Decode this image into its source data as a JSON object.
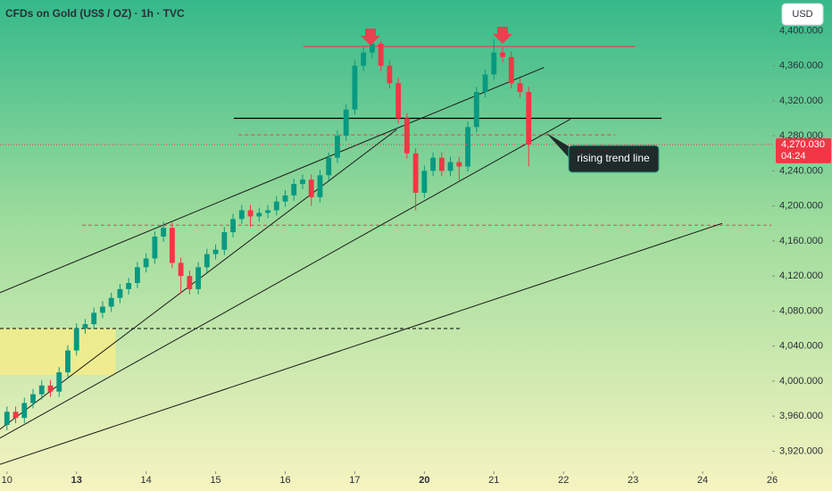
{
  "chart_data": {
    "type": "candlestick",
    "title": "CFDs on Gold (US$ / OZ) · 1h · TVC",
    "currency": "USD",
    "x": [
      0,
      0.125,
      0.25,
      0.375,
      0.5,
      0.625,
      0.75,
      0.875,
      1,
      1.125,
      1.25,
      1.375,
      1.5,
      1.625,
      1.75,
      1.875,
      2,
      2.125,
      2.25,
      2.375,
      2.5,
      2.625,
      2.75,
      2.875,
      3,
      3.125,
      3.25,
      3.375,
      3.5,
      3.625,
      3.75,
      3.875,
      4,
      4.125,
      4.25,
      4.375,
      4.5,
      4.625,
      4.75,
      4.875,
      5,
      5.125,
      5.25,
      5.375,
      5.5,
      5.625,
      5.75,
      5.875,
      6,
      6.125,
      6.25,
      6.375,
      6.5,
      6.625,
      6.75,
      6.875,
      7,
      7.125,
      7.25,
      7.375,
      7.5
    ],
    "open": [
      3950,
      3965,
      3958,
      3975,
      3985,
      3995,
      3988,
      4010,
      4035,
      4060,
      4065,
      4078,
      4085,
      4095,
      4105,
      4112,
      4130,
      4140,
      4165,
      4175,
      4135,
      4120,
      4105,
      4130,
      4145,
      4150,
      4170,
      4185,
      4195,
      4188,
      4192,
      4195,
      4205,
      4212,
      4225,
      4230,
      4210,
      4235,
      4255,
      4280,
      4310,
      4360,
      4375,
      4385,
      4360,
      4340,
      4300,
      4260,
      4215,
      4240,
      4255,
      4240,
      4250,
      4245,
      4290,
      4330,
      4350,
      4375,
      4370,
      4340,
      4330
    ],
    "high": [
      3971,
      3971,
      3981,
      3991,
      4001,
      4001,
      4016,
      4041,
      4066,
      4071,
      4084,
      4091,
      4101,
      4111,
      4118,
      4136,
      4146,
      4171,
      4182,
      4181,
      4141,
      4126,
      4136,
      4151,
      4156,
      4176,
      4191,
      4201,
      4201,
      4198,
      4201,
      4211,
      4218,
      4231,
      4236,
      4236,
      4241,
      4261,
      4286,
      4316,
      4366,
      4381,
      4388,
      4388,
      4366,
      4346,
      4306,
      4266,
      4246,
      4261,
      4261,
      4256,
      4256,
      4296,
      4336,
      4356,
      4390,
      4381,
      4376,
      4346,
      4336
    ],
    "low": [
      3944,
      3952,
      3952,
      3969,
      3979,
      3982,
      3982,
      4004,
      4029,
      4054,
      4059,
      4072,
      4079,
      4089,
      4099,
      4106,
      4124,
      4134,
      4159,
      4129,
      4100,
      4099,
      4099,
      4124,
      4139,
      4144,
      4164,
      4179,
      4176,
      4182,
      4186,
      4189,
      4199,
      4206,
      4219,
      4200,
      4204,
      4229,
      4249,
      4274,
      4304,
      4354,
      4369,
      4354,
      4334,
      4294,
      4254,
      4195,
      4209,
      4234,
      4234,
      4234,
      4229,
      4239,
      4284,
      4324,
      4344,
      4364,
      4334,
      4324,
      4245
    ],
    "close": [
      3965,
      3958,
      3975,
      3985,
      3995,
      3988,
      4010,
      4035,
      4060,
      4065,
      4078,
      4085,
      4095,
      4105,
      4112,
      4130,
      4140,
      4165,
      4175,
      4135,
      4120,
      4105,
      4130,
      4145,
      4150,
      4170,
      4185,
      4195,
      4188,
      4192,
      4195,
      4205,
      4212,
      4225,
      4230,
      4210,
      4235,
      4255,
      4280,
      4310,
      4360,
      4375,
      4385,
      4360,
      4340,
      4300,
      4260,
      4215,
      4240,
      4255,
      4240,
      4250,
      4245,
      4290,
      4330,
      4350,
      4375,
      4370,
      4340,
      4330,
      4270.03
    ],
    "up_color": "#089981",
    "down_color": "#f23645",
    "xlim": [
      -0.1,
      11
    ],
    "ylim": [
      3897,
      4435
    ],
    "xticks": [
      {
        "value": 0,
        "label": "10"
      },
      {
        "value": 1,
        "label": "13"
      },
      {
        "value": 2,
        "label": "14"
      },
      {
        "value": 3,
        "label": "15"
      },
      {
        "value": 4,
        "label": "16"
      },
      {
        "value": 5,
        "label": "17"
      },
      {
        "value": 6,
        "label": "20"
      },
      {
        "value": 7,
        "label": "21"
      },
      {
        "value": 8,
        "label": "22"
      },
      {
        "value": 9,
        "label": "23"
      },
      {
        "value": 10,
        "label": "24"
      },
      {
        "value": 11,
        "label": "26"
      }
    ],
    "yticks": [
      {
        "value": 3920,
        "label": "3,920.000"
      },
      {
        "value": 3960,
        "label": "3,960.000"
      },
      {
        "value": 4000,
        "label": "4,000.000"
      },
      {
        "value": 4040,
        "label": "4,040.000"
      },
      {
        "value": 4080,
        "label": "4,080.000"
      },
      {
        "value": 4120,
        "label": "4,120.000"
      },
      {
        "value": 4160,
        "label": "4,160.000"
      },
      {
        "value": 4200,
        "label": "4,200.000"
      },
      {
        "value": 4240,
        "label": "4,240.000"
      },
      {
        "value": 4280,
        "label": "4,280.000"
      },
      {
        "value": 4320,
        "label": "4,320.000"
      },
      {
        "value": 4360,
        "label": "4,360.000"
      },
      {
        "value": 4400,
        "label": "4,400.000"
      }
    ],
    "last_price": {
      "value": 4270.03,
      "label": "4,270.030"
    },
    "countdown": "04:24",
    "annotation": "rising trend line",
    "levels": [
      {
        "value": 4382,
        "x": [
          4.26,
          9.03
        ],
        "color": "#e8414f",
        "dashed": false
      },
      {
        "value": 4300,
        "x": [
          3.26,
          9.41
        ],
        "color": "#000000",
        "dashed": false
      },
      {
        "value": 4281,
        "x": [
          3.33,
          8.74
        ],
        "color": "#e8414f",
        "dashed": true
      },
      {
        "value": 4178,
        "x": [
          1.08,
          10.99
        ],
        "color": "#e8414f",
        "dashed": true
      },
      {
        "value": 4060,
        "x": [
          -0.1,
          6.54
        ],
        "color": "#000000",
        "dashed": true
      }
    ],
    "trend_lines": [
      {
        "x": [
          -0.1,
          7.72
        ],
        "y": [
          4101,
          4358
        ]
      },
      {
        "x": [
          -0.1,
          5.6
        ],
        "y": [
          3945,
          4287
        ]
      },
      {
        "x": [
          -0.1,
          8.1
        ],
        "y": [
          3935,
          4299
        ]
      },
      {
        "x": [
          -0.1,
          10.28
        ],
        "y": [
          3905,
          4180
        ]
      }
    ],
    "zone": {
      "x": [
        -0.1,
        1.56
      ],
      "y": [
        4007,
        4060
      ],
      "color": "#f3ec8a"
    }
  }
}
